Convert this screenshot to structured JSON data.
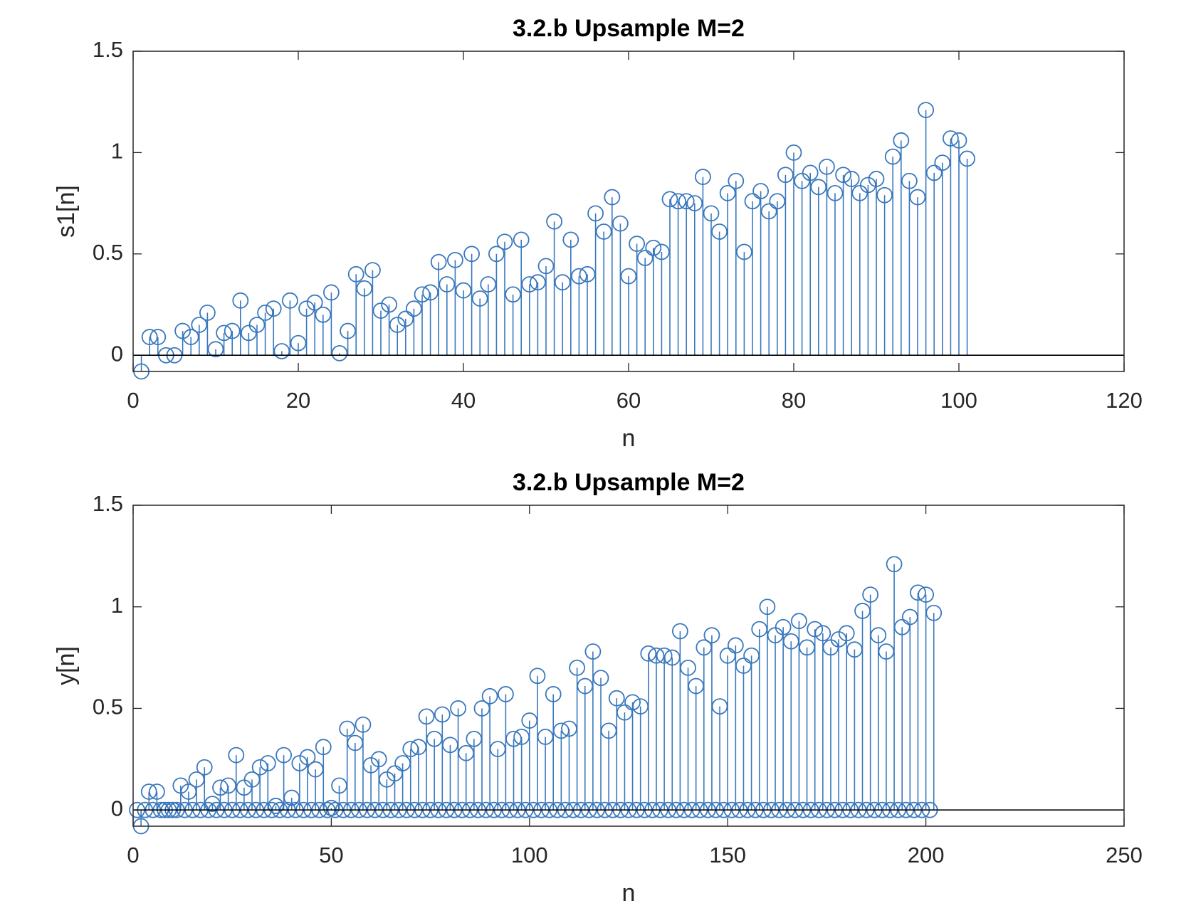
{
  "chart_data": [
    {
      "type": "stem",
      "title": "3.2.b Upsample M=2",
      "xlabel": "n",
      "ylabel": "s1[n]",
      "color": "#3a78bd",
      "xlim": [
        0,
        120
      ],
      "xticks": [
        0,
        20,
        40,
        60,
        80,
        100,
        120
      ],
      "ylim": [
        -0.08,
        1.5
      ],
      "yticks": [
        0,
        0.5,
        1,
        1.5
      ],
      "x": [
        1,
        2,
        3,
        4,
        5,
        6,
        7,
        8,
        9,
        10,
        11,
        12,
        13,
        14,
        15,
        16,
        17,
        18,
        19,
        20,
        21,
        22,
        23,
        24,
        25,
        26,
        27,
        28,
        29,
        30,
        31,
        32,
        33,
        34,
        35,
        36,
        37,
        38,
        39,
        40,
        41,
        42,
        43,
        44,
        45,
        46,
        47,
        48,
        49,
        50,
        51,
        52,
        53,
        54,
        55,
        56,
        57,
        58,
        59,
        60,
        61,
        62,
        63,
        64,
        65,
        66,
        67,
        68,
        69,
        70,
        71,
        72,
        73,
        74,
        75,
        76,
        77,
        78,
        79,
        80,
        81,
        82,
        83,
        84,
        85,
        86,
        87,
        88,
        89,
        90,
        91,
        92,
        93,
        94,
        95,
        96,
        97,
        98,
        99,
        100,
        101
      ],
      "values": [
        -0.08,
        0.09,
        0.09,
        0,
        0,
        0.12,
        0.09,
        0.15,
        0.21,
        0.03,
        0.11,
        0.12,
        0.27,
        0.11,
        0.15,
        0.21,
        0.23,
        0.02,
        0.27,
        0.06,
        0.23,
        0.26,
        0.2,
        0.31,
        0.01,
        0.12,
        0.4,
        0.33,
        0.42,
        0.22,
        0.25,
        0.15,
        0.18,
        0.23,
        0.3,
        0.31,
        0.46,
        0.35,
        0.47,
        0.32,
        0.5,
        0.28,
        0.35,
        0.5,
        0.56,
        0.3,
        0.57,
        0.35,
        0.36,
        0.44,
        0.66,
        0.36,
        0.57,
        0.39,
        0.4,
        0.7,
        0.61,
        0.78,
        0.65,
        0.39,
        0.55,
        0.48,
        0.53,
        0.51,
        0.77,
        0.76,
        0.76,
        0.75,
        0.88,
        0.7,
        0.61,
        0.8,
        0.86,
        0.51,
        0.76,
        0.81,
        0.71,
        0.76,
        0.89,
        1,
        0.86,
        0.9,
        0.83,
        0.93,
        0.8,
        0.89,
        0.87,
        0.8,
        0.84,
        0.87,
        0.79,
        0.98,
        1.06,
        0.86,
        0.78,
        1.21,
        0.9,
        0.95,
        1.07,
        1.06,
        0.97
      ]
    },
    {
      "type": "stem",
      "title": "3.2.b Upsample M=2",
      "xlabel": "n",
      "ylabel": "y[n]",
      "color": "#3a78bd",
      "xlim": [
        0,
        250
      ],
      "xticks": [
        0,
        50,
        100,
        150,
        200,
        250
      ],
      "ylim": [
        -0.08,
        1.5
      ],
      "yticks": [
        0,
        0.5,
        1,
        1.5
      ],
      "x": [
        1,
        2,
        3,
        4,
        5,
        6,
        7,
        8,
        9,
        10,
        11,
        12,
        13,
        14,
        15,
        16,
        17,
        18,
        19,
        20,
        21,
        22,
        23,
        24,
        25,
        26,
        27,
        28,
        29,
        30,
        31,
        32,
        33,
        34,
        35,
        36,
        37,
        38,
        39,
        40,
        41,
        42,
        43,
        44,
        45,
        46,
        47,
        48,
        49,
        50,
        51,
        52,
        53,
        54,
        55,
        56,
        57,
        58,
        59,
        60,
        61,
        62,
        63,
        64,
        65,
        66,
        67,
        68,
        69,
        70,
        71,
        72,
        73,
        74,
        75,
        76,
        77,
        78,
        79,
        80,
        81,
        82,
        83,
        84,
        85,
        86,
        87,
        88,
        89,
        90,
        91,
        92,
        93,
        94,
        95,
        96,
        97,
        98,
        99,
        100,
        101,
        102,
        103,
        104,
        105,
        106,
        107,
        108,
        109,
        110,
        111,
        112,
        113,
        114,
        115,
        116,
        117,
        118,
        119,
        120,
        121,
        122,
        123,
        124,
        125,
        126,
        127,
        128,
        129,
        130,
        131,
        132,
        133,
        134,
        135,
        136,
        137,
        138,
        139,
        140,
        141,
        142,
        143,
        144,
        145,
        146,
        147,
        148,
        149,
        150,
        151,
        152,
        153,
        154,
        155,
        156,
        157,
        158,
        159,
        160,
        161,
        162,
        163,
        164,
        165,
        166,
        167,
        168,
        169,
        170,
        171,
        172,
        173,
        174,
        175,
        176,
        177,
        178,
        179,
        180,
        181,
        182,
        183,
        184,
        185,
        186,
        187,
        188,
        189,
        190,
        191,
        192,
        193,
        194,
        195,
        196,
        197,
        198,
        199,
        200,
        201,
        202
      ],
      "values": [
        0,
        -0.08,
        0,
        0.09,
        0,
        0.09,
        0,
        0,
        0,
        0,
        0,
        0.12,
        0,
        0.09,
        0,
        0.15,
        0,
        0.21,
        0,
        0.03,
        0,
        0.11,
        0,
        0.12,
        0,
        0.27,
        0,
        0.11,
        0,
        0.15,
        0,
        0.21,
        0,
        0.23,
        0,
        0.02,
        0,
        0.27,
        0,
        0.06,
        0,
        0.23,
        0,
        0.26,
        0,
        0.2,
        0,
        0.31,
        0,
        0.01,
        0,
        0.12,
        0,
        0.4,
        0,
        0.33,
        0,
        0.42,
        0,
        0.22,
        0,
        0.25,
        0,
        0.15,
        0,
        0.18,
        0,
        0.23,
        0,
        0.3,
        0,
        0.31,
        0,
        0.46,
        0,
        0.35,
        0,
        0.47,
        0,
        0.32,
        0,
        0.5,
        0,
        0.28,
        0,
        0.35,
        0,
        0.5,
        0,
        0.56,
        0,
        0.3,
        0,
        0.57,
        0,
        0.35,
        0,
        0.36,
        0,
        0.44,
        0,
        0.66,
        0,
        0.36,
        0,
        0.57,
        0,
        0.39,
        0,
        0.4,
        0,
        0.7,
        0,
        0.61,
        0,
        0.78,
        0,
        0.65,
        0,
        0.39,
        0,
        0.55,
        0,
        0.48,
        0,
        0.53,
        0,
        0.51,
        0,
        0.77,
        0,
        0.76,
        0,
        0.76,
        0,
        0.75,
        0,
        0.88,
        0,
        0.7,
        0,
        0.61,
        0,
        0.8,
        0,
        0.86,
        0,
        0.51,
        0,
        0.76,
        0,
        0.81,
        0,
        0.71,
        0,
        0.76,
        0,
        0.89,
        0,
        1,
        0,
        0.86,
        0,
        0.9,
        0,
        0.83,
        0,
        0.93,
        0,
        0.8,
        0,
        0.89,
        0,
        0.87,
        0,
        0.8,
        0,
        0.84,
        0,
        0.87,
        0,
        0.79,
        0,
        0.98,
        0,
        1.06,
        0,
        0.86,
        0,
        0.78,
        0,
        1.21,
        0,
        0.9,
        0,
        0.95,
        0,
        1.07,
        0,
        1.06,
        0,
        0.97
      ]
    }
  ]
}
